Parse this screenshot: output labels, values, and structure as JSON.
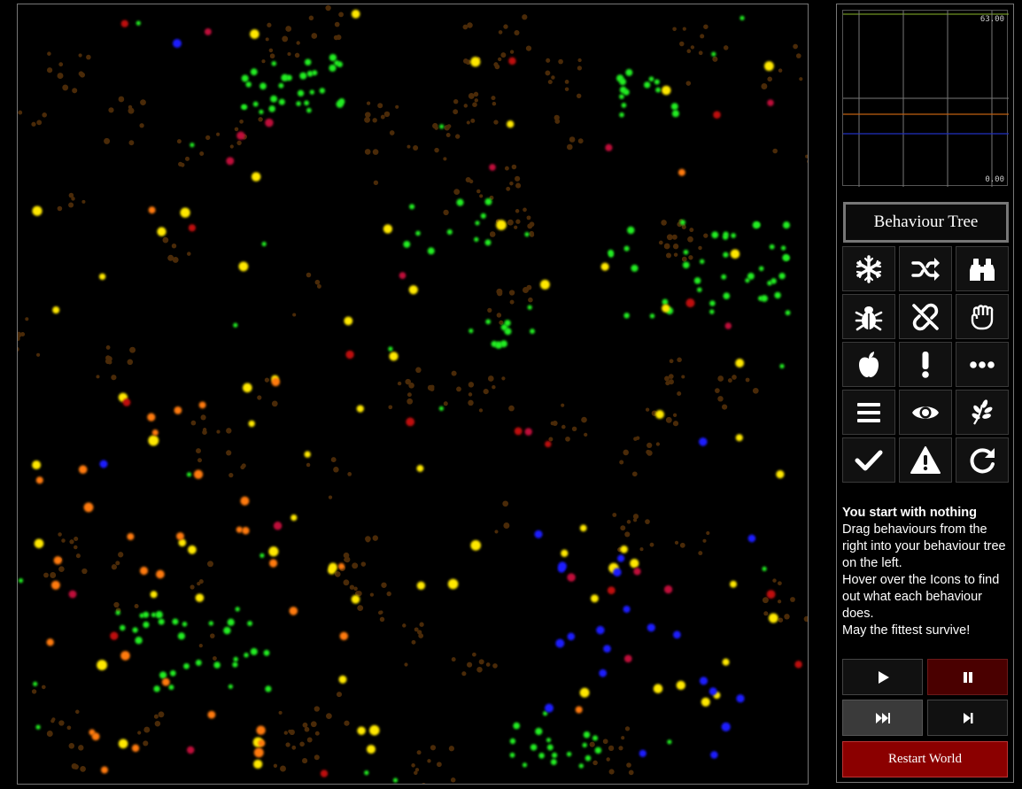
{
  "graph": {
    "max_label": "63.00",
    "min_label": "0.00",
    "colors": {
      "top_line": "#8ab82a",
      "gray": "#888888",
      "orange": "#c06010",
      "blue": "#2030c0"
    }
  },
  "behaviour_tree": {
    "title": "Behaviour Tree"
  },
  "palette": [
    {
      "icon": "snowflake-icon"
    },
    {
      "icon": "shuffle-icon"
    },
    {
      "icon": "binoculars-icon"
    },
    {
      "icon": "bug-icon"
    },
    {
      "icon": "unlink-icon"
    },
    {
      "icon": "fist-icon"
    },
    {
      "icon": "apple-icon"
    },
    {
      "icon": "exclamation-icon"
    },
    {
      "icon": "ellipsis-icon"
    },
    {
      "icon": "list-icon"
    },
    {
      "icon": "eye-icon"
    },
    {
      "icon": "sprout-icon"
    },
    {
      "icon": "check-icon"
    },
    {
      "icon": "warning-icon"
    },
    {
      "icon": "redo-icon"
    }
  ],
  "info": {
    "heading": "You start with nothing",
    "line1": "Drag behaviours from the right into your behaviour tree on the left.",
    "line2": "Hover over the Icons to find out what each behaviour does.",
    "line3": "May the fittest survive!"
  },
  "controls": {
    "play": "play-icon",
    "pause": "pause-icon",
    "fast_forward": "fast-forward-icon",
    "step": "step-forward-icon",
    "restart_label": "Restart World",
    "colors": {
      "pause_bg": "#4a0000",
      "restart_bg": "#8b0000",
      "fast_bg": "#3a3a3a"
    }
  },
  "world": {
    "colors": {
      "yellow": "#ffe800",
      "green": "#22ee22",
      "orange": "#ff7a10",
      "red": "#c01010",
      "crimson": "#c0103a",
      "blue": "#1a1aff",
      "food": "#4a2a08"
    }
  }
}
